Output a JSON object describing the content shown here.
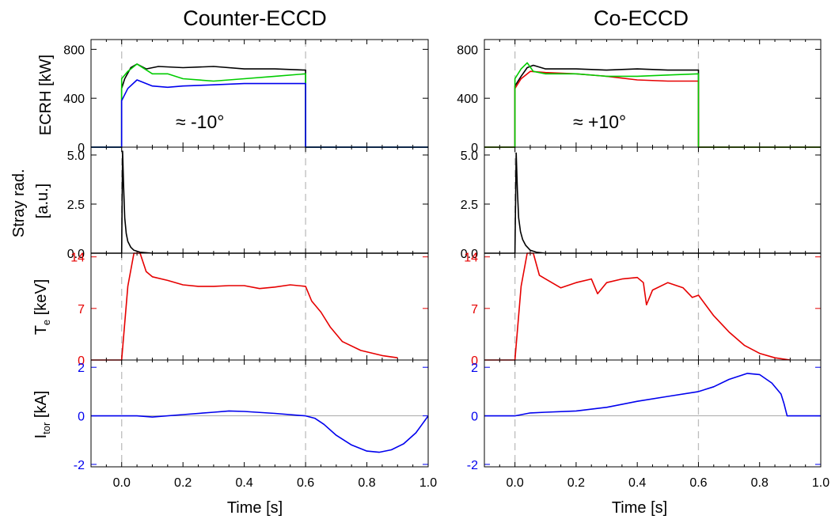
{
  "chart_data": [
    {
      "type": "line",
      "title": "Counter-ECCD",
      "xlabel": "Time [s]",
      "xlim": [
        -0.1,
        1.0
      ],
      "x_ticks": [
        "0.0",
        "0.2",
        "0.4",
        "0.6",
        "0.8",
        "1.0"
      ],
      "ecrh_window": [
        0.0,
        0.6
      ],
      "annotation": "≈ -10°",
      "panels": [
        {
          "id": "ecrh",
          "ylabel": "ECRH [kW]",
          "ylim": [
            0,
            880
          ],
          "y_ticks": [
            "0",
            "400",
            "800"
          ],
          "tick_color": "#000000",
          "series": [
            {
              "color": "#000000",
              "x": [
                -0.1,
                0.0,
                0.0,
                0.01,
                0.03,
                0.05,
                0.08,
                0.12,
                0.2,
                0.3,
                0.4,
                0.5,
                0.6,
                0.6,
                1.0
              ],
              "y": [
                0,
                0,
                480,
                560,
                650,
                680,
                640,
                660,
                650,
                660,
                640,
                640,
                630,
                0,
                0
              ]
            },
            {
              "color": "#00cc00",
              "x": [
                -0.1,
                0.0,
                0.0,
                0.02,
                0.05,
                0.1,
                0.15,
                0.2,
                0.3,
                0.4,
                0.5,
                0.6,
                0.6,
                1.0
              ],
              "y": [
                0,
                0,
                560,
                620,
                680,
                600,
                600,
                560,
                540,
                560,
                580,
                600,
                0,
                0
              ]
            },
            {
              "color": "#0000ee",
              "x": [
                -0.1,
                0.0,
                0.0,
                0.02,
                0.05,
                0.1,
                0.15,
                0.2,
                0.3,
                0.4,
                0.5,
                0.6,
                0.6,
                1.0
              ],
              "y": [
                0,
                0,
                380,
                480,
                550,
                500,
                490,
                500,
                510,
                520,
                520,
                520,
                0,
                0
              ]
            }
          ]
        },
        {
          "id": "stray",
          "ylabel": [
            "Stray rad.",
            "[a.u.]"
          ],
          "ylim": [
            0,
            5.4
          ],
          "y_ticks": [
            "0.0",
            "2.5",
            "5.0"
          ],
          "tick_color": "#000000",
          "series": [
            {
              "color": "#000000",
              "x": [
                -0.1,
                0.0,
                0.003,
                0.006,
                0.01,
                0.015,
                0.02,
                0.03,
                0.04,
                0.06,
                0.1,
                1.0
              ],
              "y": [
                0,
                0,
                5.2,
                3.5,
                1.8,
                1.0,
                0.6,
                0.3,
                0.15,
                0.05,
                0,
                0
              ]
            }
          ]
        },
        {
          "id": "te",
          "ylabel": [
            "T",
            "e",
            " [keV]"
          ],
          "ylim": [
            0,
            14.5
          ],
          "y_ticks": [
            "0",
            "7",
            "14"
          ],
          "tick_color": "#e60000",
          "series": [
            {
              "color": "#e60000",
              "x": [
                -0.1,
                0.0,
                0.02,
                0.04,
                0.06,
                0.08,
                0.1,
                0.15,
                0.2,
                0.25,
                0.3,
                0.35,
                0.4,
                0.45,
                0.5,
                0.55,
                0.6,
                0.62,
                0.65,
                0.68,
                0.72,
                0.78,
                0.85,
                0.9
              ],
              "y": [
                0,
                0,
                10,
                14.5,
                14.5,
                12,
                11.3,
                10.8,
                10.2,
                10,
                10,
                10.1,
                10.1,
                9.7,
                9.9,
                10.2,
                10,
                8,
                6.5,
                4.5,
                2.5,
                1.3,
                0.6,
                0.3
              ]
            }
          ]
        },
        {
          "id": "itor",
          "ylabel": [
            "I",
            "tor",
            " [kA]"
          ],
          "ylim": [
            -2.1,
            2.3
          ],
          "y_ticks": [
            "-2",
            "0",
            "2"
          ],
          "tick_color": "#0000ee",
          "series": [
            {
              "color": "#0000ee",
              "x": [
                -0.1,
                0.0,
                0.05,
                0.1,
                0.2,
                0.3,
                0.35,
                0.4,
                0.5,
                0.6,
                0.63,
                0.66,
                0.7,
                0.75,
                0.8,
                0.84,
                0.88,
                0.92,
                0.96,
                0.98,
                1.0
              ],
              "y": [
                0,
                0,
                0,
                -0.05,
                0.05,
                0.15,
                0.2,
                0.18,
                0.1,
                0.0,
                -0.1,
                -0.35,
                -0.8,
                -1.2,
                -1.45,
                -1.5,
                -1.4,
                -1.15,
                -0.7,
                -0.35,
                0
              ]
            }
          ]
        }
      ]
    },
    {
      "type": "line",
      "title": "Co-ECCD",
      "xlabel": "Time [s]",
      "xlim": [
        -0.1,
        1.0
      ],
      "x_ticks": [
        "0.0",
        "0.2",
        "0.4",
        "0.6",
        "0.8",
        "1.0"
      ],
      "ecrh_window": [
        0.0,
        0.6
      ],
      "annotation": "≈ +10°",
      "panels": [
        {
          "id": "ecrh",
          "ylabel": "",
          "ylim": [
            0,
            880
          ],
          "y_ticks": [
            "0",
            "400",
            "800"
          ],
          "tick_color": "#000000",
          "series": [
            {
              "color": "#000000",
              "x": [
                -0.1,
                0.0,
                0.0,
                0.02,
                0.04,
                0.06,
                0.1,
                0.2,
                0.3,
                0.4,
                0.5,
                0.6,
                0.6,
                1.0
              ],
              "y": [
                0,
                0,
                500,
                580,
                650,
                670,
                640,
                640,
                630,
                640,
                630,
                630,
                0,
                0
              ]
            },
            {
              "color": "#e60000",
              "x": [
                -0.1,
                0.0,
                0.0,
                0.02,
                0.05,
                0.1,
                0.2,
                0.3,
                0.4,
                0.5,
                0.6,
                0.6,
                1.0
              ],
              "y": [
                0,
                0,
                480,
                560,
                620,
                610,
                600,
                580,
                550,
                540,
                540,
                0,
                0
              ]
            },
            {
              "color": "#00cc00",
              "x": [
                -0.1,
                0.0,
                0.0,
                0.02,
                0.04,
                0.06,
                0.1,
                0.2,
                0.3,
                0.4,
                0.5,
                0.6,
                0.6,
                1.0
              ],
              "y": [
                0,
                0,
                560,
                640,
                690,
                620,
                600,
                600,
                580,
                580,
                590,
                600,
                0,
                0
              ]
            }
          ]
        },
        {
          "id": "stray",
          "ylabel": "",
          "ylim": [
            0,
            5.4
          ],
          "y_ticks": [
            "0.0",
            "2.5",
            "5.0"
          ],
          "tick_color": "#000000",
          "series": [
            {
              "color": "#000000",
              "x": [
                -0.1,
                0.0,
                0.004,
                0.008,
                0.012,
                0.018,
                0.025,
                0.035,
                0.05,
                0.07,
                0.1,
                1.0
              ],
              "y": [
                0,
                0,
                5.1,
                3.2,
                1.8,
                1.1,
                0.7,
                0.4,
                0.15,
                0.05,
                0,
                0
              ]
            }
          ]
        },
        {
          "id": "te",
          "ylabel": "",
          "ylim": [
            0,
            14.5
          ],
          "y_ticks": [
            "0",
            "7",
            "14"
          ],
          "tick_color": "#e60000",
          "series": [
            {
              "color": "#e60000",
              "x": [
                -0.1,
                0.0,
                0.02,
                0.04,
                0.06,
                0.08,
                0.1,
                0.15,
                0.2,
                0.25,
                0.27,
                0.3,
                0.35,
                0.4,
                0.42,
                0.43,
                0.45,
                0.5,
                0.55,
                0.58,
                0.6,
                0.65,
                0.7,
                0.75,
                0.8,
                0.85,
                0.9
              ],
              "y": [
                0,
                0,
                10,
                14.5,
                14.5,
                11.5,
                11,
                9.8,
                10.5,
                11,
                9,
                10.5,
                11,
                11.2,
                10.5,
                7.5,
                9.5,
                10.5,
                9.8,
                8.5,
                8.8,
                6,
                3.8,
                2,
                0.9,
                0.3,
                0
              ]
            }
          ]
        },
        {
          "id": "itor",
          "ylabel": "",
          "ylim": [
            -2.1,
            2.3
          ],
          "y_ticks": [
            "-2",
            "0",
            "2"
          ],
          "tick_color": "#0000ee",
          "series": [
            {
              "color": "#0000ee",
              "x": [
                -0.1,
                0.0,
                0.05,
                0.1,
                0.2,
                0.3,
                0.4,
                0.5,
                0.6,
                0.65,
                0.7,
                0.76,
                0.8,
                0.84,
                0.87,
                0.88,
                0.89,
                1.0
              ],
              "y": [
                0,
                0,
                0.12,
                0.15,
                0.2,
                0.35,
                0.6,
                0.8,
                1.0,
                1.2,
                1.5,
                1.75,
                1.7,
                1.35,
                0.9,
                0.5,
                0,
                0
              ]
            }
          ]
        }
      ]
    }
  ]
}
